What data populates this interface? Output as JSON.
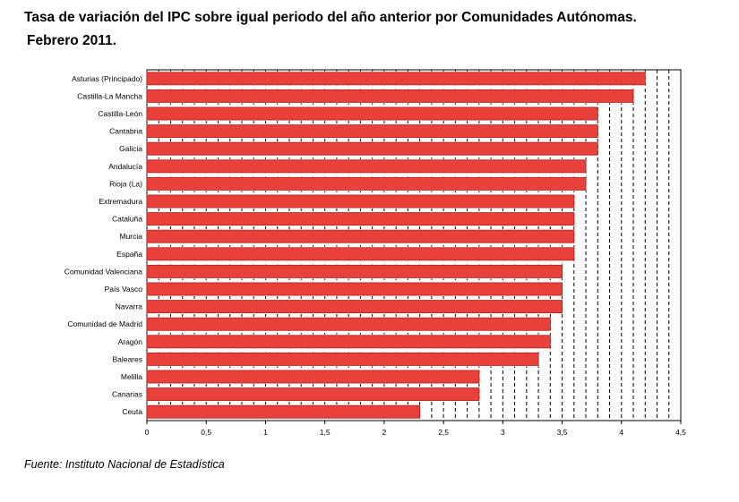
{
  "chart_data": {
    "type": "bar",
    "orientation": "horizontal",
    "title": "Tasa de variación del IPC sobre igual periodo del año anterior por Comunidades Autónomas.",
    "subtitle": "Febrero 2011.",
    "xlabel": "",
    "ylabel": "",
    "categories": [
      "Asturias (Principado)",
      "Castilla-La Mancha",
      "Castilla-León",
      "Cantabria",
      "Galicia",
      "Andalucía",
      "Rioja (La)",
      "Extremadura",
      "Cataluña",
      "Murcia",
      "España",
      "Comunidad Valenciana",
      "País Vasco",
      "Navarra",
      "Comunidad de Madrid",
      "Aragón",
      "Baleares",
      "Melilla",
      "Canarias",
      "Ceuta"
    ],
    "values": [
      4.2,
      4.1,
      3.8,
      3.8,
      3.8,
      3.7,
      3.7,
      3.6,
      3.6,
      3.6,
      3.6,
      3.5,
      3.5,
      3.5,
      3.4,
      3.4,
      3.3,
      2.8,
      2.8,
      2.3
    ],
    "xlim": [
      0,
      4.5
    ],
    "xticks": [
      "0",
      "0,5",
      "1",
      "1,5",
      "2",
      "2,5",
      "3",
      "3,5",
      "4",
      "4,5"
    ],
    "grid": "vertical dashed",
    "legend": "none",
    "bar_color": "#e8403a",
    "bar_edge_color": "#b3201b"
  },
  "source": "Fuente: Instituto Nacional de Estadística"
}
